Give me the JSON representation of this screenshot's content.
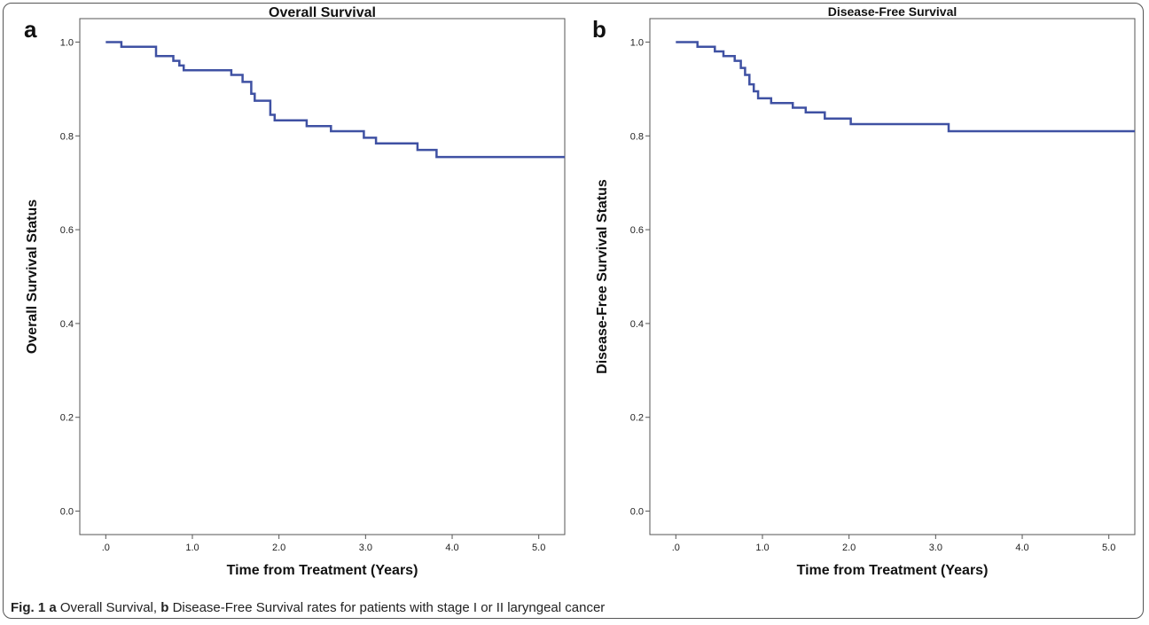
{
  "caption": {
    "fig_label": "Fig. 1",
    "a_label": "a",
    "a_text": "Overall Survival,",
    "b_label": "b",
    "b_text": "Disease-Free Survival rates for patients with stage I or II laryngeal cancer"
  },
  "chart_data": [
    {
      "type": "line",
      "panel_label": "a",
      "title": "Overall Survival",
      "xlabel": "Time from Treatment (Years)",
      "ylabel": "Overall Survival Status",
      "xlim": [
        -0.3,
        5.3
      ],
      "ylim": [
        -0.05,
        1.05
      ],
      "xticks": [
        0,
        1,
        2,
        3,
        4,
        5
      ],
      "xtick_labels": [
        ".0",
        "1.0",
        "2.0",
        "3.0",
        "4.0",
        "5.0"
      ],
      "yticks": [
        0,
        0.2,
        0.4,
        0.6,
        0.8,
        1.0
      ],
      "ytick_labels": [
        "0.0",
        "0.2",
        "0.4",
        "0.6",
        "0.8",
        "1.0"
      ],
      "grid": false,
      "series": [
        {
          "color": "#3f51a3",
          "x": [
            0,
            0.18,
            0.58,
            0.78,
            0.85,
            0.9,
            1.45,
            1.58,
            1.68,
            1.72,
            1.9,
            1.95,
            2.32,
            2.6,
            2.98,
            3.12,
            3.6,
            3.82,
            5.3
          ],
          "y": [
            1.0,
            0.99,
            0.97,
            0.96,
            0.95,
            0.94,
            0.93,
            0.915,
            0.89,
            0.875,
            0.845,
            0.833,
            0.821,
            0.81,
            0.796,
            0.784,
            0.77,
            0.755,
            0.755
          ]
        }
      ]
    },
    {
      "type": "line",
      "panel_label": "b",
      "title": "Disease-Free Survival",
      "xlabel": "Time from Treatment (Years)",
      "ylabel": "Disease-Free Survival Status",
      "xlim": [
        -0.3,
        5.3
      ],
      "ylim": [
        -0.05,
        1.05
      ],
      "xticks": [
        0,
        1,
        2,
        3,
        4,
        5
      ],
      "xtick_labels": [
        ".0",
        "1.0",
        "2.0",
        "3.0",
        "4.0",
        "5.0"
      ],
      "yticks": [
        0,
        0.2,
        0.4,
        0.6,
        0.8,
        1.0
      ],
      "ytick_labels": [
        "0.0",
        "0.2",
        "0.4",
        "0.6",
        "0.8",
        "1.0"
      ],
      "grid": false,
      "series": [
        {
          "color": "#3f51a3",
          "x": [
            0,
            0.25,
            0.45,
            0.55,
            0.68,
            0.75,
            0.8,
            0.85,
            0.9,
            0.95,
            1.1,
            1.35,
            1.5,
            1.72,
            2.02,
            3.15,
            5.3
          ],
          "y": [
            1.0,
            0.99,
            0.98,
            0.97,
            0.96,
            0.945,
            0.93,
            0.91,
            0.895,
            0.88,
            0.87,
            0.86,
            0.85,
            0.837,
            0.825,
            0.81,
            0.81
          ]
        }
      ]
    }
  ]
}
